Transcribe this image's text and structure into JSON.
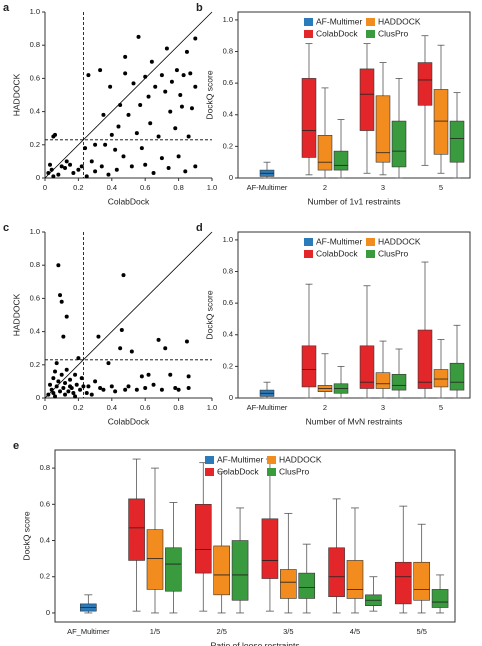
{
  "chart_data": [
    {
      "type": "scatter",
      "panel": "a",
      "x_label": "ColabDock",
      "y_label": "HADDOCK",
      "color": "#000000",
      "xlim": [
        0,
        1
      ],
      "ylim": [
        0,
        1
      ],
      "xticks": [
        0,
        0.2,
        0.4,
        0.6,
        0.8,
        {
          "value": 1,
          "label": "1.0"
        }
      ],
      "yticks": [
        0,
        0.2,
        0.4,
        0.6,
        0.8,
        {
          "value": 1,
          "label": "1.0"
        }
      ],
      "threshold": 0.23,
      "x": [
        0.02,
        0.03,
        0.04,
        0.05,
        0.06,
        0.05,
        0.08,
        0.1,
        0.12,
        0.13,
        0.15,
        0.17,
        0.2,
        0.22,
        0.24,
        0.25,
        0.26,
        0.28,
        0.3,
        0.3,
        0.33,
        0.34,
        0.35,
        0.36,
        0.38,
        0.39,
        0.4,
        0.42,
        0.43,
        0.44,
        0.45,
        0.47,
        0.48,
        0.48,
        0.5,
        0.52,
        0.53,
        0.55,
        0.56,
        0.57,
        0.58,
        0.6,
        0.6,
        0.62,
        0.63,
        0.64,
        0.65,
        0.66,
        0.68,
        0.7,
        0.7,
        0.72,
        0.73,
        0.74,
        0.75,
        0.76,
        0.78,
        0.79,
        0.8,
        0.81,
        0.82,
        0.83,
        0.84,
        0.85,
        0.86,
        0.87,
        0.88,
        0.9,
        0.9,
        0.9
      ],
      "values": [
        0.03,
        0.08,
        0.05,
        0.25,
        0.26,
        0.01,
        0.02,
        0.07,
        0.06,
        0.1,
        0.08,
        0.03,
        0.05,
        0.07,
        0.18,
        0.01,
        0.62,
        0.1,
        0.04,
        0.2,
        0.65,
        0.07,
        0.38,
        0.2,
        0.02,
        0.55,
        0.26,
        0.17,
        0.05,
        0.31,
        0.44,
        0.13,
        0.73,
        0.63,
        0.38,
        0.07,
        0.57,
        0.27,
        0.85,
        0.44,
        0.18,
        0.08,
        0.61,
        0.49,
        0.33,
        0.7,
        0.03,
        0.55,
        0.25,
        0.62,
        0.12,
        0.52,
        0.78,
        0.06,
        0.4,
        0.58,
        0.3,
        0.65,
        0.13,
        0.5,
        0.43,
        0.62,
        0.04,
        0.76,
        0.25,
        0.63,
        0.42,
        0.84,
        0.07,
        0.55
      ]
    },
    {
      "type": "box",
      "panel": "b",
      "x_label": "Number of 1v1 restraints",
      "y_label": "DockQ score",
      "legend": "upper center",
      "categories": [
        "AF-Multimer",
        "2",
        "3",
        "5"
      ],
      "ylim": [
        0,
        1.05
      ],
      "yticks": [
        0,
        0.2,
        0.4,
        0.6,
        0.8,
        {
          "value": 1,
          "label": "1.0"
        }
      ],
      "series": [
        {
          "name": "AF-Multimer",
          "color": "#2b7bba",
          "boxes": [
            {
              "min": 0,
              "q1": 0.01,
              "median": 0.03,
              "q3": 0.05,
              "max": 0.1
            },
            null,
            null,
            null
          ]
        },
        {
          "name": "ColabDock",
          "color": "#e3262a",
          "boxes": [
            null,
            {
              "min": 0.02,
              "q1": 0.13,
              "median": 0.3,
              "q3": 0.63,
              "max": 0.85
            },
            {
              "min": 0.03,
              "q1": 0.3,
              "median": 0.53,
              "q3": 0.69,
              "max": 0.85
            },
            {
              "min": 0.08,
              "q1": 0.46,
              "median": 0.62,
              "q3": 0.73,
              "max": 0.9
            }
          ]
        },
        {
          "name": "HADDOCK",
          "color": "#f28c1f",
          "boxes": [
            null,
            {
              "min": 0,
              "q1": 0.05,
              "median": 0.1,
              "q3": 0.27,
              "max": 0.57
            },
            {
              "min": 0.02,
              "q1": 0.1,
              "median": 0.16,
              "q3": 0.52,
              "max": 0.73
            },
            {
              "min": 0.03,
              "q1": 0.15,
              "median": 0.36,
              "q3": 0.56,
              "max": 0.84
            }
          ]
        },
        {
          "name": "ClusPro",
          "color": "#3a9a3e",
          "boxes": [
            null,
            {
              "min": 0,
              "q1": 0.05,
              "median": 0.08,
              "q3": 0.17,
              "max": 0.37
            },
            {
              "min": 0,
              "q1": 0.07,
              "median": 0.17,
              "q3": 0.36,
              "max": 0.63
            },
            {
              "min": 0,
              "q1": 0.1,
              "median": 0.25,
              "q3": 0.36,
              "max": 0.54
            }
          ]
        }
      ]
    },
    {
      "type": "scatter",
      "panel": "c",
      "x_label": "ColabDock",
      "y_label": "HADDOCK",
      "color": "#000000",
      "xlim": [
        0,
        1
      ],
      "ylim": [
        0,
        1
      ],
      "xticks": [
        0,
        0.2,
        0.4,
        0.6,
        0.8,
        {
          "value": 1,
          "label": "1.0"
        }
      ],
      "yticks": [
        0,
        0.2,
        0.4,
        0.6,
        0.8,
        {
          "value": 1,
          "label": "1.0"
        }
      ],
      "threshold": 0.23,
      "x": [
        0.02,
        0.03,
        0.04,
        0.05,
        0.05,
        0.06,
        0.06,
        0.07,
        0.07,
        0.08,
        0.08,
        0.09,
        0.09,
        0.1,
        0.1,
        0.11,
        0.11,
        0.12,
        0.12,
        0.13,
        0.13,
        0.14,
        0.15,
        0.15,
        0.16,
        0.17,
        0.18,
        0.18,
        0.19,
        0.2,
        0.21,
        0.22,
        0.23,
        0.25,
        0.26,
        0.28,
        0.3,
        0.32,
        0.33,
        0.35,
        0.38,
        0.4,
        0.42,
        0.45,
        0.46,
        0.47,
        0.48,
        0.5,
        0.52,
        0.55,
        0.58,
        0.6,
        0.62,
        0.65,
        0.68,
        0.7,
        0.72,
        0.75,
        0.78,
        0.8,
        0.85,
        0.86,
        0.86
      ],
      "values": [
        0.02,
        0.08,
        0.05,
        0.12,
        0.03,
        0.16,
        0.01,
        0.07,
        0.21,
        0.8,
        0.1,
        0.04,
        0.62,
        0.58,
        0.14,
        0.06,
        0.37,
        0.02,
        0.09,
        0.49,
        0.17,
        0.04,
        0.11,
        0.07,
        0.06,
        0.03,
        0.14,
        0.01,
        0.08,
        0.24,
        0.05,
        0.12,
        0.07,
        0.03,
        0.07,
        0.02,
        0.1,
        0.37,
        0.06,
        0.05,
        0.21,
        0.07,
        0.04,
        0.3,
        0.41,
        0.74,
        0.05,
        0.07,
        0.28,
        0.05,
        0.13,
        0.06,
        0.14,
        0.08,
        0.35,
        0.05,
        0.3,
        0.14,
        0.06,
        0.05,
        0.34,
        0.13,
        0.06
      ]
    },
    {
      "type": "box",
      "panel": "d",
      "x_label": "Number of MvN restraints",
      "y_label": "DockQ score",
      "legend": "upper center",
      "categories": [
        "AF-Multimer",
        "2",
        "3",
        "5"
      ],
      "ylim": [
        0,
        1.05
      ],
      "yticks": [
        0,
        0.2,
        0.4,
        0.6,
        0.8,
        {
          "value": 1,
          "label": "1.0"
        }
      ],
      "series": [
        {
          "name": "AF-Multimer",
          "color": "#2b7bba",
          "boxes": [
            {
              "min": 0,
              "q1": 0.01,
              "median": 0.03,
              "q3": 0.05,
              "max": 0.1
            },
            null,
            null,
            null
          ]
        },
        {
          "name": "ColabDock",
          "color": "#e3262a",
          "boxes": [
            null,
            {
              "min": 0,
              "q1": 0.07,
              "median": 0.18,
              "q3": 0.33,
              "max": 0.72
            },
            {
              "min": 0,
              "q1": 0.06,
              "median": 0.1,
              "q3": 0.33,
              "max": 0.71
            },
            {
              "min": 0,
              "q1": 0.06,
              "median": 0.1,
              "q3": 0.43,
              "max": 0.86
            }
          ]
        },
        {
          "name": "HADDOCK",
          "color": "#f28c1f",
          "boxes": [
            null,
            {
              "min": 0,
              "q1": 0.04,
              "median": 0.06,
              "q3": 0.08,
              "max": 0.28
            },
            {
              "min": 0,
              "q1": 0.06,
              "median": 0.09,
              "q3": 0.16,
              "max": 0.36
            },
            {
              "min": 0,
              "q1": 0.07,
              "median": 0.12,
              "q3": 0.18,
              "max": 0.37
            }
          ]
        },
        {
          "name": "ClusPro",
          "color": "#3a9a3e",
          "boxes": [
            null,
            {
              "min": 0,
              "q1": 0.03,
              "median": 0.06,
              "q3": 0.09,
              "max": 0.2
            },
            {
              "min": 0,
              "q1": 0.05,
              "median": 0.08,
              "q3": 0.15,
              "max": 0.31
            },
            {
              "min": 0,
              "q1": 0.05,
              "median": 0.1,
              "q3": 0.22,
              "max": 0.46
            }
          ]
        }
      ]
    },
    {
      "type": "box",
      "panel": "e",
      "x_label": "Ratio of loose restraints",
      "y_label": "DockQ score",
      "legend": "upper center",
      "categories": [
        "AF_Multimer",
        "1/5",
        "2/5",
        "3/5",
        "4/5",
        "5/5"
      ],
      "ylim": [
        -0.05,
        0.9
      ],
      "yticks": [
        0,
        0.2,
        0.4,
        0.6,
        0.8
      ],
      "series": [
        {
          "name": "AF-Multimer",
          "color": "#2b7bba",
          "boxes": [
            {
              "min": 0,
              "q1": 0.01,
              "median": 0.03,
              "q3": 0.05,
              "max": 0.1
            },
            null,
            null,
            null,
            null,
            null
          ]
        },
        {
          "name": "ColabDock",
          "color": "#e3262a",
          "boxes": [
            null,
            {
              "min": 0.01,
              "q1": 0.29,
              "median": 0.47,
              "q3": 0.63,
              "max": 0.85
            },
            {
              "min": 0.01,
              "q1": 0.22,
              "median": 0.35,
              "q3": 0.6,
              "max": 0.83
            },
            {
              "min": 0.01,
              "q1": 0.19,
              "median": 0.29,
              "q3": 0.52,
              "max": 0.85
            },
            {
              "min": 0,
              "q1": 0.09,
              "median": 0.2,
              "q3": 0.36,
              "max": 0.63
            },
            {
              "min": 0,
              "q1": 0.05,
              "median": 0.2,
              "q3": 0.28,
              "max": 0.59
            }
          ]
        },
        {
          "name": "HADDOCK",
          "color": "#f28c1f",
          "boxes": [
            null,
            {
              "min": 0,
              "q1": 0.13,
              "median": 0.3,
              "q3": 0.46,
              "max": 0.8
            },
            {
              "min": 0,
              "q1": 0.1,
              "median": 0.21,
              "q3": 0.37,
              "max": 0.78
            },
            {
              "min": 0,
              "q1": 0.08,
              "median": 0.17,
              "q3": 0.24,
              "max": 0.55
            },
            {
              "min": 0,
              "q1": 0.08,
              "median": 0.13,
              "q3": 0.29,
              "max": 0.58
            },
            {
              "min": 0,
              "q1": 0.07,
              "median": 0.13,
              "q3": 0.28,
              "max": 0.49
            }
          ]
        },
        {
          "name": "ClusPro",
          "color": "#3a9a3e",
          "boxes": [
            null,
            {
              "min": 0,
              "q1": 0.12,
              "median": 0.27,
              "q3": 0.36,
              "max": 0.61
            },
            {
              "min": 0,
              "q1": 0.07,
              "median": 0.21,
              "q3": 0.4,
              "max": 0.58
            },
            {
              "min": 0,
              "q1": 0.08,
              "median": 0.14,
              "q3": 0.22,
              "max": 0.38
            },
            {
              "min": 0.01,
              "q1": 0.04,
              "median": 0.07,
              "q3": 0.1,
              "max": 0.2
            },
            {
              "min": 0,
              "q1": 0.03,
              "median": 0.06,
              "q3": 0.13,
              "max": 0.21
            }
          ]
        }
      ]
    }
  ]
}
